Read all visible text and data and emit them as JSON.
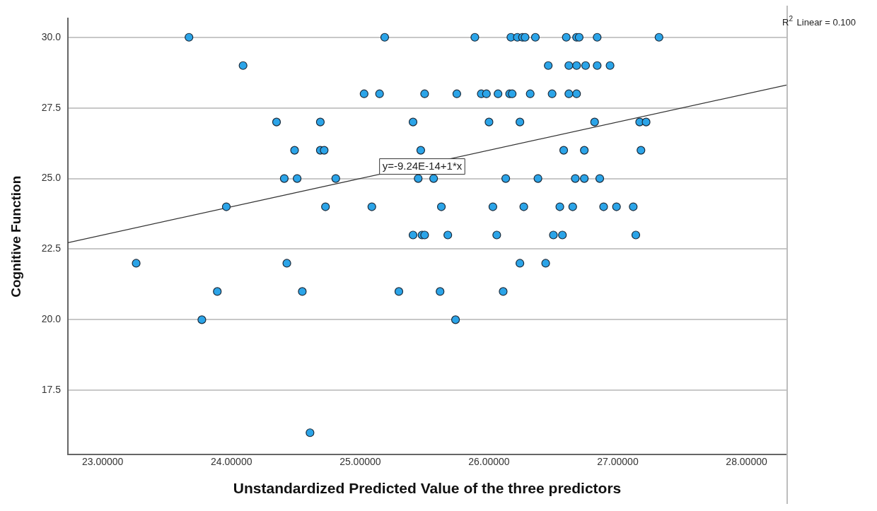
{
  "chart_data": {
    "type": "scatter",
    "xlabel": "Unstandardized Predicted Value of the three predictors",
    "ylabel": "Cognitive Function",
    "xlim": [
      22.73,
      28.31
    ],
    "ylim": [
      15.23,
      30.66
    ],
    "xticks": [
      {
        "value": 23,
        "label": "23.00000"
      },
      {
        "value": 24,
        "label": "24.00000"
      },
      {
        "value": 25,
        "label": "25.00000"
      },
      {
        "value": 26,
        "label": "26.00000"
      },
      {
        "value": 27,
        "label": "27.00000"
      },
      {
        "value": 28,
        "label": "28.00000"
      }
    ],
    "yticks": [
      {
        "value": 17.5,
        "label": "17.5"
      },
      {
        "value": 20,
        "label": "20.0"
      },
      {
        "value": 22.5,
        "label": "22.5"
      },
      {
        "value": 25,
        "label": "25.0"
      },
      {
        "value": 27.5,
        "label": "27.5"
      },
      {
        "value": 30,
        "label": "30.0"
      }
    ],
    "grid": "y",
    "legend": false,
    "marker": "circle",
    "series": [
      {
        "type": "scatter",
        "color": "#2ba4e8",
        "x": [
          23.67,
          25.19,
          25.89,
          26.17,
          26.22,
          26.26,
          26.28,
          26.36,
          26.6,
          26.68,
          26.7,
          26.84,
          27.32,
          24.09,
          26.46,
          26.62,
          26.68,
          26.75,
          26.84,
          26.94,
          25.03,
          25.15,
          25.5,
          25.75,
          25.94,
          25.98,
          26.07,
          26.16,
          26.18,
          26.32,
          26.49,
          26.62,
          26.68,
          24.35,
          24.69,
          25.41,
          26.0,
          26.24,
          26.82,
          27.17,
          27.22,
          24.49,
          24.69,
          24.72,
          25.47,
          26.58,
          26.74,
          27.18,
          24.41,
          24.51,
          24.81,
          25.45,
          25.57,
          26.13,
          26.38,
          26.67,
          26.74,
          26.86,
          23.96,
          24.73,
          25.09,
          25.63,
          26.03,
          26.27,
          26.55,
          26.65,
          26.89,
          26.99,
          27.12,
          25.41,
          25.48,
          25.5,
          25.68,
          26.06,
          26.5,
          26.57,
          27.14,
          23.26,
          24.43,
          26.24,
          26.44,
          23.89,
          24.55,
          25.3,
          25.62,
          26.11,
          23.77,
          25.74,
          24.61
        ],
        "values": [
          30,
          30,
          30,
          30,
          30,
          30,
          30,
          30,
          30,
          30,
          30,
          30,
          30,
          29,
          29,
          29,
          29,
          29,
          29,
          29,
          28,
          28,
          28,
          28,
          28,
          28,
          28,
          28,
          28,
          28,
          28,
          28,
          28,
          27,
          27,
          27,
          27,
          27,
          27,
          27,
          27,
          26,
          26,
          26,
          26,
          26,
          26,
          26,
          25,
          25,
          25,
          25,
          25,
          25,
          25,
          25,
          25,
          25,
          24,
          24,
          24,
          24,
          24,
          24,
          24,
          24,
          24,
          24,
          24,
          23,
          23,
          23,
          23,
          23,
          23,
          23,
          23,
          22,
          22,
          22,
          22,
          21,
          21,
          21,
          21,
          21,
          20,
          20,
          16
        ]
      },
      {
        "type": "line",
        "color": "#333333",
        "line_style": "solid",
        "marker": "none",
        "x": [
          22.73,
          28.31
        ],
        "values": [
          22.73,
          28.31
        ]
      }
    ],
    "annotations": [
      {
        "text": "y=-9.24E-14+1*x",
        "x": 25.15,
        "y": 25.15
      },
      "R$^{2}$ Linear = 0.100"
    ]
  }
}
